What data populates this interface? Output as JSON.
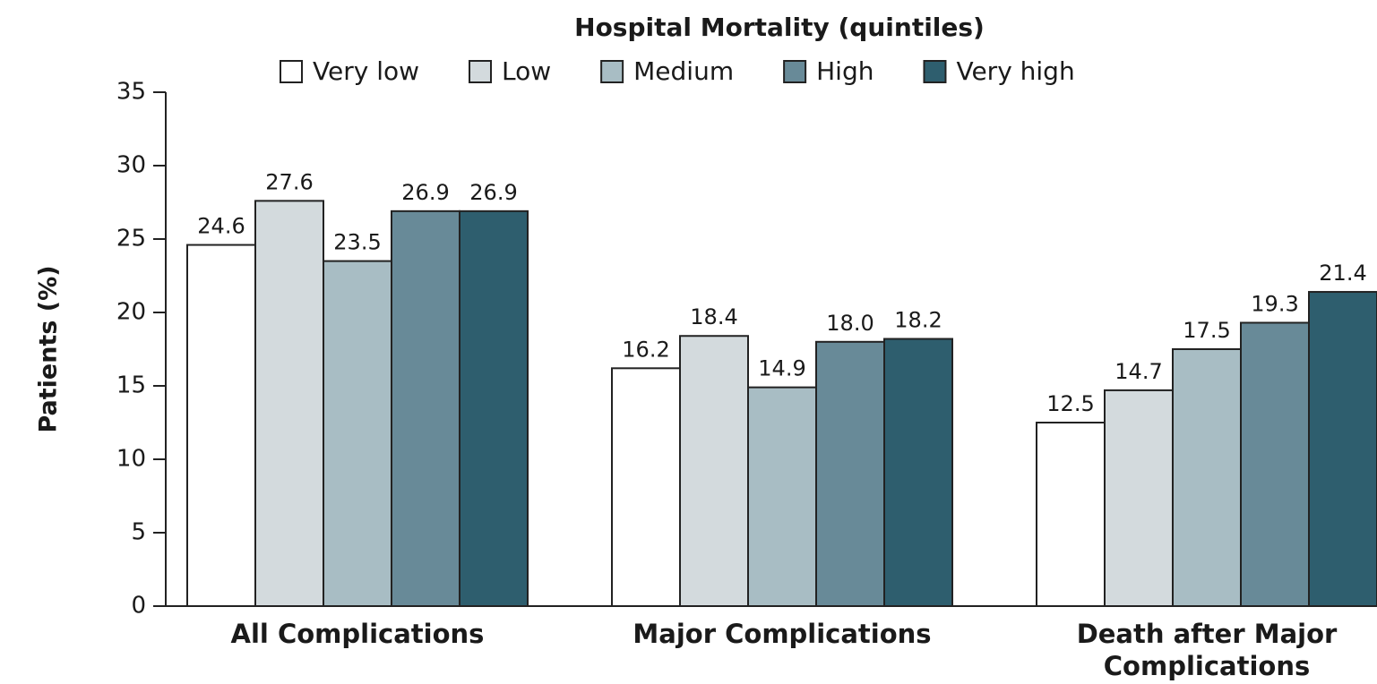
{
  "chart_data": {
    "type": "bar",
    "title": "Hospital Mortality (quintiles)",
    "y_label": "Patients (%)",
    "categories": [
      "All Complications",
      "Major Complications",
      "Death after Major Complications"
    ],
    "series": [
      {
        "name": "Very low",
        "color": "#ffffff",
        "values": [
          24.6,
          16.2,
          12.5
        ]
      },
      {
        "name": "Low",
        "color": "#d3dadd",
        "values": [
          27.6,
          18.4,
          14.7
        ]
      },
      {
        "name": "Medium",
        "color": "#a8bdc4",
        "values": [
          23.5,
          14.9,
          17.5
        ]
      },
      {
        "name": "High",
        "color": "#688a98",
        "values": [
          26.9,
          18.0,
          19.3
        ],
        "value_labels": [
          "26.9",
          "18.0",
          "19.3"
        ]
      },
      {
        "name": "Very high",
        "color": "#2e5e6e",
        "values": [
          26.9,
          18.2,
          21.4
        ]
      }
    ],
    "ylim": [
      0,
      35
    ],
    "yticks": [
      0,
      5,
      10,
      15,
      20,
      25,
      30,
      35
    ]
  }
}
